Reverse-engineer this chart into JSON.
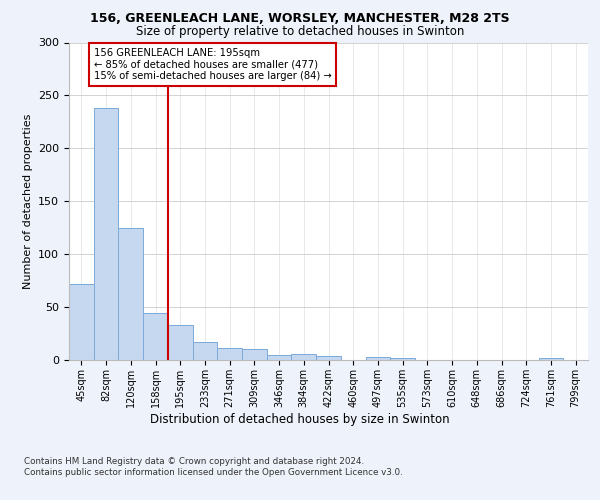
{
  "title1": "156, GREENLEACH LANE, WORSLEY, MANCHESTER, M28 2TS",
  "title2": "Size of property relative to detached houses in Swinton",
  "xlabel": "Distribution of detached houses by size in Swinton",
  "ylabel": "Number of detached properties",
  "bar_labels": [
    "45sqm",
    "82sqm",
    "120sqm",
    "158sqm",
    "195sqm",
    "233sqm",
    "271sqm",
    "309sqm",
    "346sqm",
    "384sqm",
    "422sqm",
    "460sqm",
    "497sqm",
    "535sqm",
    "573sqm",
    "610sqm",
    "648sqm",
    "686sqm",
    "724sqm",
    "761sqm",
    "799sqm"
  ],
  "bar_values": [
    72,
    238,
    125,
    44,
    33,
    17,
    11,
    10,
    5,
    6,
    4,
    0,
    3,
    2,
    0,
    0,
    0,
    0,
    0,
    2,
    0
  ],
  "bar_color": "#c5d8f0",
  "bar_edge_color": "#7aaadb",
  "vline_x": 4,
  "vline_color": "#cc0000",
  "annotation_text": "156 GREENLEACH LANE: 195sqm\n← 85% of detached houses are smaller (477)\n15% of semi-detached houses are larger (84) →",
  "ylim": [
    0,
    300
  ],
  "yticks": [
    0,
    50,
    100,
    150,
    200,
    250,
    300
  ],
  "footer": "Contains HM Land Registry data © Crown copyright and database right 2024.\nContains public sector information licensed under the Open Government Licence v3.0.",
  "bg_color": "#eef2fa",
  "plot_bg_color": "#ffffff"
}
